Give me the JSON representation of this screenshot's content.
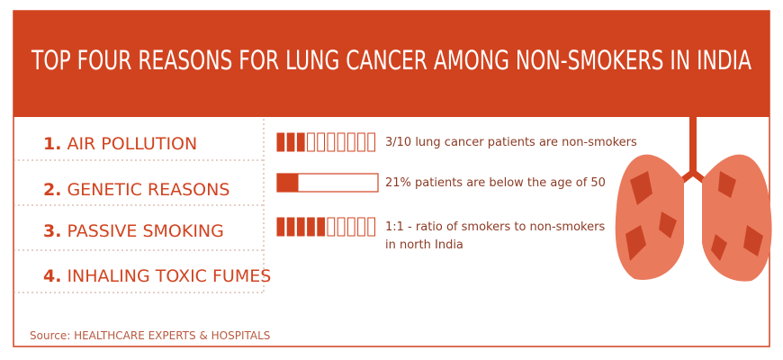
{
  "title": "TOP FOUR REASONS FOR LUNG CANCER AMONG NON-SMOKERS IN INDIA",
  "color": "#d1431f",
  "reasons": [
    {
      "number": "1.",
      "label": "AIR POLLUTION"
    },
    {
      "number": "2.",
      "label": "GENETIC REASONS"
    },
    {
      "number": "3.",
      "label": "PASSIVE SMOKING"
    },
    {
      "number": "4.",
      "label": "INHALING TOXIC FUMES"
    }
  ],
  "stats": [
    {
      "kind": "icons",
      "filled": 3,
      "count": 10,
      "text": [
        "3/10 lung cancer patients are non-smokers"
      ]
    },
    {
      "kind": "bar",
      "value": 21,
      "scale": [
        0,
        100
      ],
      "text": [
        "21% patients are below the age of 50"
      ]
    },
    {
      "kind": "icons",
      "filled": 5,
      "count": 10,
      "text": [
        "1:1 - ratio of smokers to non-smokers",
        "in north India"
      ]
    }
  ],
  "source": "Source: HEALTHCARE EXPERTS & HOSPITALS"
}
